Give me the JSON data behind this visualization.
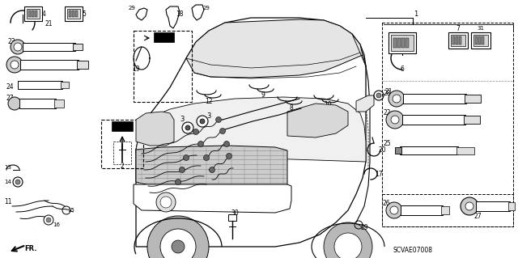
{
  "bg_color": "#ffffff",
  "diagram_code": "SCVAE07008",
  "fig_w": 6.4,
  "fig_h": 3.19,
  "dpi": 100
}
